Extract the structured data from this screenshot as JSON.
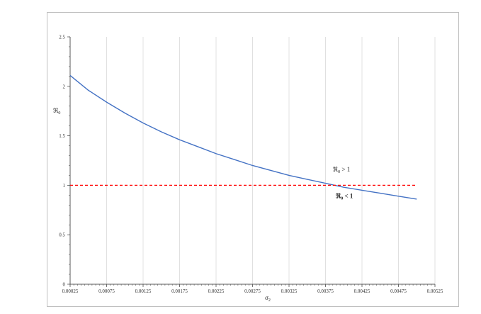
{
  "chart_data": {
    "type": "line",
    "title": "",
    "xlabel": "σ",
    "xlabel_sub": "2",
    "ylabel": "ℜ",
    "ylabel_sub": "0",
    "xlim": [
      0.00025,
      0.00525
    ],
    "ylim": [
      0,
      2.5
    ],
    "x_ticks": [
      "0.00025",
      "0.00075",
      "0.00125",
      "0.00175",
      "0.00225",
      "0.00275",
      "0.00325",
      "0.00375",
      "0.00425",
      "0.00475",
      "0.00525"
    ],
    "y_ticks": [
      "0",
      "0.5",
      "1",
      "1.5",
      "2",
      "2.5"
    ],
    "grid": "vertical",
    "series": [
      {
        "color": "#4472c4",
        "style": "solid",
        "x": [
          0.00025,
          0.0005,
          0.00075,
          0.001,
          0.00125,
          0.0015,
          0.00175,
          0.002,
          0.00225,
          0.0025,
          0.00275,
          0.003,
          0.00325,
          0.0035,
          0.00375,
          0.004,
          0.00425,
          0.0045,
          0.00475,
          0.005
        ],
        "y": [
          2.11,
          1.96,
          1.84,
          1.73,
          1.63,
          1.54,
          1.46,
          1.39,
          1.32,
          1.26,
          1.2,
          1.15,
          1.1,
          1.06,
          1.02,
          0.98,
          0.95,
          0.92,
          0.89,
          0.86
        ]
      },
      {
        "color": "#ff0000",
        "style": "dashed",
        "x": [
          0.00025,
          0.005
        ],
        "y": [
          1,
          1
        ]
      }
    ],
    "annotations": [
      {
        "text": "ℜ",
        "sub": "0",
        "rest": " > 1",
        "x": 0.00385,
        "y": 1.14,
        "bold": false
      },
      {
        "text": "ℜ",
        "sub": "0",
        "rest": " < 1",
        "x": 0.00389,
        "y": 0.87,
        "bold": true
      }
    ]
  }
}
